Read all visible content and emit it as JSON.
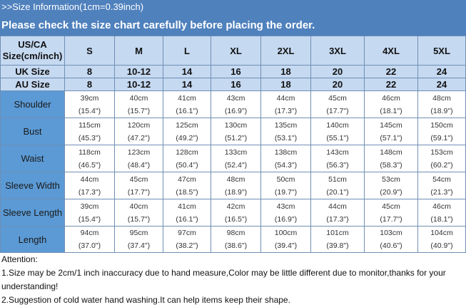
{
  "header": {
    "title": ">>Size Information(1cm=0.39inch)",
    "subtitle": "Please check the size chart carefully before placing the order."
  },
  "colors": {
    "header": "#4f81bd",
    "cell": "#c5d9f1",
    "label": "#5b9ad5"
  },
  "table": {
    "corner": "US/CA Size(cm/inch)",
    "sizes": [
      "S",
      "M",
      "L",
      "XL",
      "2XL",
      "3XL",
      "4XL",
      "5XL"
    ],
    "uk": {
      "label": "UK Size",
      "values": [
        "8",
        "10-12",
        "14",
        "16",
        "18",
        "20",
        "22",
        "24"
      ]
    },
    "au": {
      "label": "AU Size",
      "values": [
        "8",
        "10-12",
        "14",
        "16",
        "18",
        "20",
        "22",
        "24"
      ]
    },
    "rows": [
      {
        "label": "Shoulder",
        "cm": [
          "39cm",
          "40cm",
          "41cm",
          "43cm",
          "44cm",
          "45cm",
          "46cm",
          "48cm"
        ],
        "in": [
          "(15.4\")",
          "(15.7\")",
          "(16.1\")",
          "(16.9\")",
          "(17.3\")",
          "(17.7\")",
          "(18.1\")",
          "(18.9\")"
        ]
      },
      {
        "label": "Bust",
        "cm": [
          "115cm",
          "120cm",
          "125cm",
          "130cm",
          "135cm",
          "140cm",
          "145cm",
          "150cm"
        ],
        "in": [
          "(45.3\")",
          "(47.2\")",
          "(49.2\")",
          "(51.2\")",
          "(53.1\")",
          "(55.1\")",
          "(57.1\")",
          "(59.1\")"
        ]
      },
      {
        "label": "Waist",
        "cm": [
          "118cm",
          "123cm",
          "128cm",
          "133cm",
          "138cm",
          "143cm",
          "148cm",
          "153cm"
        ],
        "in": [
          "(46.5\")",
          "(48.4\")",
          "(50.4\")",
          "(52.4\")",
          "(54.3\")",
          "(56.3\")",
          "(58.3\")",
          "(60.2\")"
        ]
      },
      {
        "label": "Sleeve Width",
        "cm": [
          "44cm",
          "45cm",
          "47cm",
          "48cm",
          "50cm",
          "51cm",
          "53cm",
          "54cm"
        ],
        "in": [
          "(17.3\")",
          "(17.7\")",
          "(18.5\")",
          "(18.9\")",
          "(19.7\")",
          "(20.1\")",
          "(20.9\")",
          "(21.3\")"
        ]
      },
      {
        "label": "Sleeve Length",
        "cm": [
          "39cm",
          "40cm",
          "41cm",
          "42cm",
          "43cm",
          "44cm",
          "45cm",
          "46cm"
        ],
        "in": [
          "(15.4\")",
          "(15.7\")",
          "(16.1\")",
          "(16.5\")",
          "(16.9\")",
          "(17.3\")",
          "(17.7\")",
          "(18.1\")"
        ]
      },
      {
        "label": "Length",
        "cm": [
          "94cm",
          "95cm",
          "97cm",
          "98cm",
          "100cm",
          "101cm",
          "103cm",
          "104cm"
        ],
        "in": [
          "(37.0\")",
          "(37.4\")",
          "(38.2\")",
          "(38.6\")",
          "(39.4\")",
          "(39.8\")",
          "(40.6\")",
          "(40.9\")"
        ]
      }
    ]
  },
  "attention": {
    "title": "Attention:",
    "note1": "1.Size may be 2cm/1 inch inaccuracy due to hand measure,Color may be little different due to monitor,thanks for your understanding!",
    "note2": "2.Suggestion of cold water hand washing.It can help items keep their shape."
  }
}
